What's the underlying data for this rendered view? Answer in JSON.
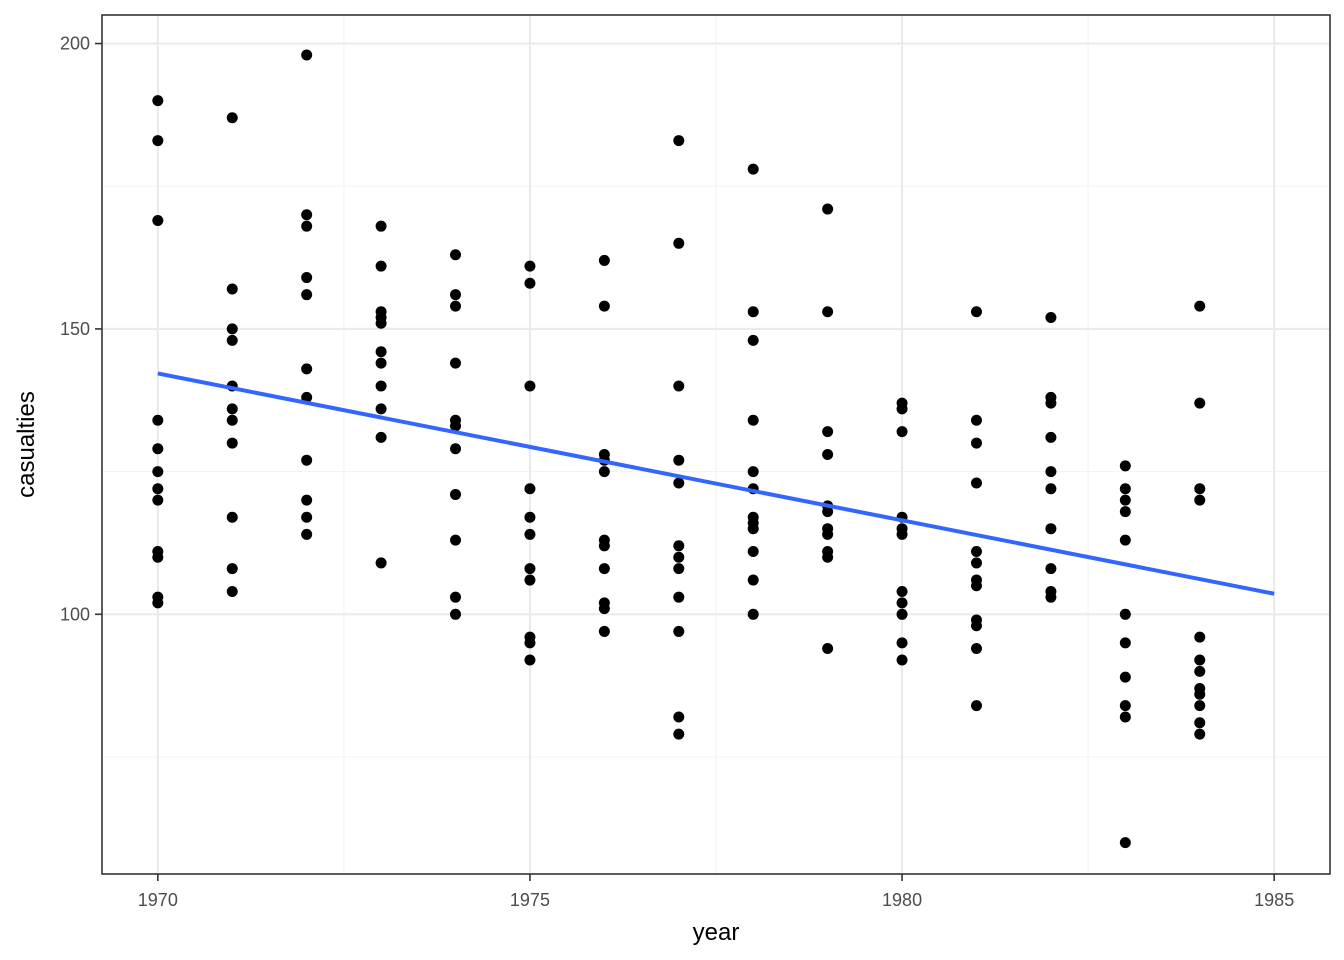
{
  "chart_data": {
    "type": "scatter",
    "title": "",
    "xlabel": "year",
    "ylabel": "casualties",
    "xlim": [
      1969.25,
      1985.75
    ],
    "ylim": [
      54.5,
      205
    ],
    "x_ticks": [
      1970,
      1975,
      1980,
      1985
    ],
    "x_tick_labels": [
      "1970",
      "1975",
      "1980",
      "1985"
    ],
    "y_ticks": [
      100,
      150,
      200
    ],
    "y_tick_labels": [
      "100",
      "150",
      "200"
    ],
    "grid": true,
    "legend": "none",
    "colors": {
      "points": "#000000",
      "trend_line": "#3366ff",
      "panel_border": "#333333",
      "grid_major": "#ebebeb",
      "grid_minor": "#f3f3f3"
    },
    "series": [
      {
        "points": [
          [
            1970,
            190
          ],
          [
            1970,
            183
          ],
          [
            1970,
            169
          ],
          [
            1970,
            134
          ],
          [
            1970,
            129
          ],
          [
            1970,
            125
          ],
          [
            1970,
            122
          ],
          [
            1970,
            120
          ],
          [
            1970,
            111
          ],
          [
            1970,
            110
          ],
          [
            1970,
            103
          ],
          [
            1970,
            102
          ],
          [
            1971,
            187
          ],
          [
            1971,
            157
          ],
          [
            1971,
            150
          ],
          [
            1971,
            148
          ],
          [
            1971,
            140
          ],
          [
            1971,
            136
          ],
          [
            1971,
            134
          ],
          [
            1971,
            130
          ],
          [
            1971,
            117
          ],
          [
            1971,
            108
          ],
          [
            1971,
            104
          ],
          [
            1972,
            198
          ],
          [
            1972,
            170
          ],
          [
            1972,
            168
          ],
          [
            1972,
            159
          ],
          [
            1972,
            156
          ],
          [
            1972,
            143
          ],
          [
            1972,
            138
          ],
          [
            1972,
            127
          ],
          [
            1972,
            120
          ],
          [
            1972,
            117
          ],
          [
            1972,
            114
          ],
          [
            1973,
            168
          ],
          [
            1973,
            161
          ],
          [
            1973,
            153
          ],
          [
            1973,
            152
          ],
          [
            1973,
            151
          ],
          [
            1973,
            146
          ],
          [
            1973,
            144
          ],
          [
            1973,
            140
          ],
          [
            1973,
            136
          ],
          [
            1973,
            131
          ],
          [
            1973,
            109
          ],
          [
            1974,
            163
          ],
          [
            1974,
            156
          ],
          [
            1974,
            154
          ],
          [
            1974,
            144
          ],
          [
            1974,
            134
          ],
          [
            1974,
            133
          ],
          [
            1974,
            129
          ],
          [
            1974,
            121
          ],
          [
            1974,
            113
          ],
          [
            1974,
            103
          ],
          [
            1974,
            100
          ],
          [
            1975,
            161
          ],
          [
            1975,
            158
          ],
          [
            1975,
            140
          ],
          [
            1975,
            122
          ],
          [
            1975,
            117
          ],
          [
            1975,
            114
          ],
          [
            1975,
            108
          ],
          [
            1975,
            106
          ],
          [
            1975,
            96
          ],
          [
            1975,
            95
          ],
          [
            1975,
            92
          ],
          [
            1976,
            162
          ],
          [
            1976,
            154
          ],
          [
            1976,
            128
          ],
          [
            1976,
            127
          ],
          [
            1976,
            125
          ],
          [
            1976,
            113
          ],
          [
            1976,
            112
          ],
          [
            1976,
            108
          ],
          [
            1976,
            102
          ],
          [
            1976,
            101
          ],
          [
            1976,
            97
          ],
          [
            1977,
            183
          ],
          [
            1977,
            165
          ],
          [
            1977,
            140
          ],
          [
            1977,
            127
          ],
          [
            1977,
            123
          ],
          [
            1977,
            112
          ],
          [
            1977,
            110
          ],
          [
            1977,
            108
          ],
          [
            1977,
            103
          ],
          [
            1977,
            97
          ],
          [
            1977,
            82
          ],
          [
            1977,
            79
          ],
          [
            1978,
            178
          ],
          [
            1978,
            153
          ],
          [
            1978,
            148
          ],
          [
            1978,
            134
          ],
          [
            1978,
            125
          ],
          [
            1978,
            122
          ],
          [
            1978,
            117
          ],
          [
            1978,
            116
          ],
          [
            1978,
            115
          ],
          [
            1978,
            111
          ],
          [
            1978,
            106
          ],
          [
            1978,
            100
          ],
          [
            1979,
            171
          ],
          [
            1979,
            153
          ],
          [
            1979,
            132
          ],
          [
            1979,
            128
          ],
          [
            1979,
            119
          ],
          [
            1979,
            118
          ],
          [
            1979,
            115
          ],
          [
            1979,
            114
          ],
          [
            1979,
            111
          ],
          [
            1979,
            110
          ],
          [
            1979,
            94
          ],
          [
            1980,
            137
          ],
          [
            1980,
            136
          ],
          [
            1980,
            132
          ],
          [
            1980,
            117
          ],
          [
            1980,
            115
          ],
          [
            1980,
            114
          ],
          [
            1980,
            104
          ],
          [
            1980,
            102
          ],
          [
            1980,
            100
          ],
          [
            1980,
            95
          ],
          [
            1980,
            92
          ],
          [
            1981,
            153
          ],
          [
            1981,
            134
          ],
          [
            1981,
            130
          ],
          [
            1981,
            123
          ],
          [
            1981,
            111
          ],
          [
            1981,
            109
          ],
          [
            1981,
            106
          ],
          [
            1981,
            105
          ],
          [
            1981,
            99
          ],
          [
            1981,
            98
          ],
          [
            1981,
            94
          ],
          [
            1981,
            84
          ],
          [
            1982,
            152
          ],
          [
            1982,
            138
          ],
          [
            1982,
            137
          ],
          [
            1982,
            131
          ],
          [
            1982,
            125
          ],
          [
            1982,
            122
          ],
          [
            1982,
            115
          ],
          [
            1982,
            108
          ],
          [
            1982,
            104
          ],
          [
            1982,
            103
          ],
          [
            1983,
            126
          ],
          [
            1983,
            122
          ],
          [
            1983,
            120
          ],
          [
            1983,
            118
          ],
          [
            1983,
            113
          ],
          [
            1983,
            100
          ],
          [
            1983,
            95
          ],
          [
            1983,
            89
          ],
          [
            1983,
            84
          ],
          [
            1983,
            82
          ],
          [
            1983,
            60
          ],
          [
            1984,
            154
          ],
          [
            1984,
            137
          ],
          [
            1984,
            122
          ],
          [
            1984,
            120
          ],
          [
            1984,
            96
          ],
          [
            1984,
            92
          ],
          [
            1984,
            90
          ],
          [
            1984,
            87
          ],
          [
            1984,
            86
          ],
          [
            1984,
            84
          ],
          [
            1984,
            81
          ],
          [
            1984,
            79
          ]
        ]
      }
    ],
    "trend_line": {
      "type": "linear",
      "x": [
        1970,
        1985
      ],
      "y": [
        142.2,
        103.6
      ]
    }
  }
}
